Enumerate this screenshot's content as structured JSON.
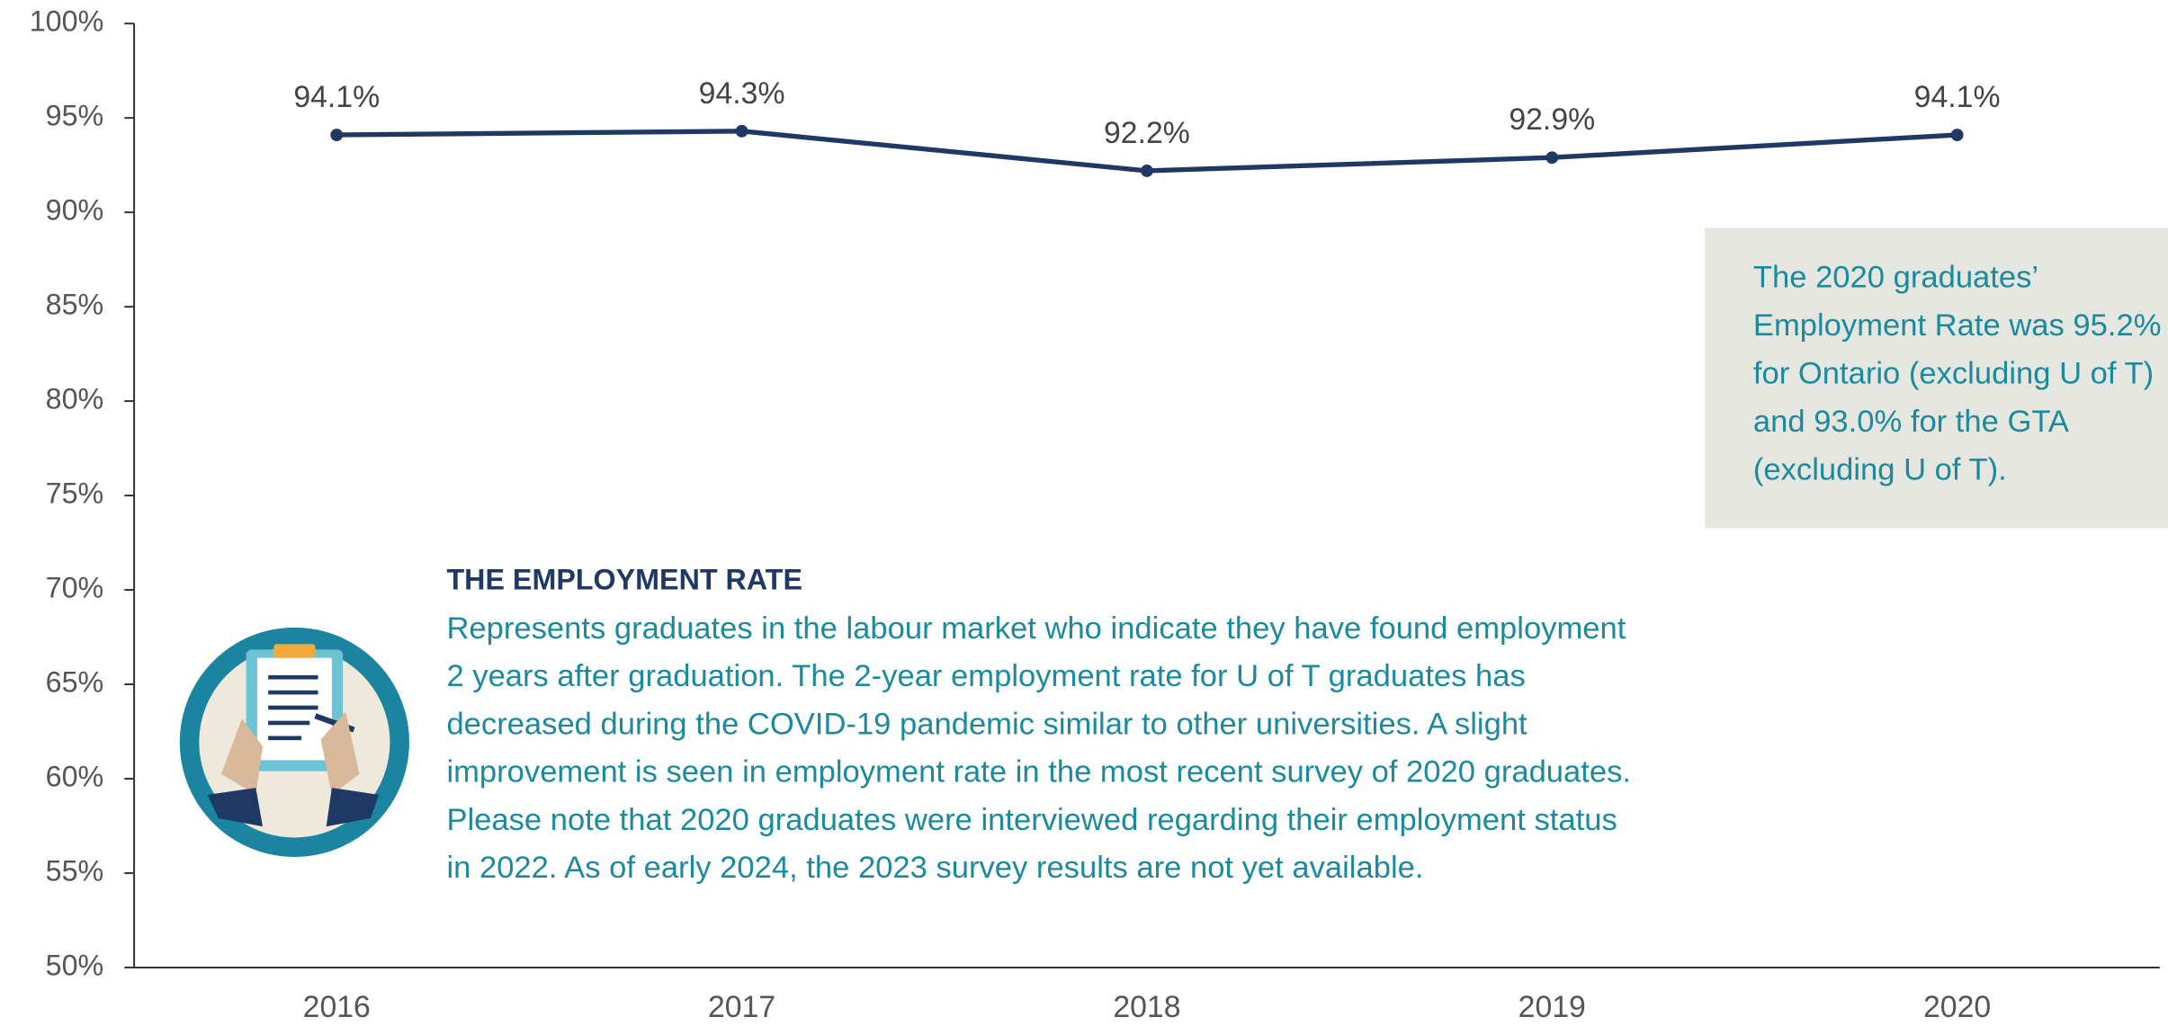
{
  "chart_data": {
    "type": "line",
    "categories": [
      "2016",
      "2017",
      "2018",
      "2019",
      "2020"
    ],
    "values": [
      94.1,
      94.3,
      92.2,
      92.9,
      94.1
    ],
    "value_labels": [
      "94.1%",
      "94.3%",
      "92.2%",
      "92.9%",
      "94.1%"
    ],
    "color": "#1f3864",
    "ylim": [
      50,
      100
    ],
    "yticks": [
      {
        "value": 50,
        "label": "50%"
      },
      {
        "value": 55,
        "label": "55%"
      },
      {
        "value": 60,
        "label": "60%"
      },
      {
        "value": 65,
        "label": "65%"
      },
      {
        "value": 70,
        "label": "70%"
      },
      {
        "value": 75,
        "label": "75%"
      },
      {
        "value": 80,
        "label": "80%"
      },
      {
        "value": 85,
        "label": "85%"
      },
      {
        "value": 90,
        "label": "90%"
      },
      {
        "value": 95,
        "label": "95%"
      },
      {
        "value": 100,
        "label": "100%"
      }
    ],
    "callout_lines": [
      "The 2020 graduates’",
      "Employment Rate was 95.2%",
      "for Ontario (excluding U of T)",
      "and 93.0% for the GTA",
      "(excluding U of T)."
    ],
    "note": {
      "title": "THE EMPLOYMENT RATE",
      "lines": [
        "Represents graduates in the labour market who indicate they have found employment",
        "2 years after graduation. The 2-year employment rate for U of T graduates has",
        "decreased during the COVID-19 pandemic similar to other universities. A slight",
        "improvement is seen in employment rate in the most recent survey of 2020 graduates.",
        "Please note that 2020 graduates were interviewed regarding their employment status",
        "in 2022. As of early 2024, the 2023 survey results are not yet available."
      ]
    }
  }
}
